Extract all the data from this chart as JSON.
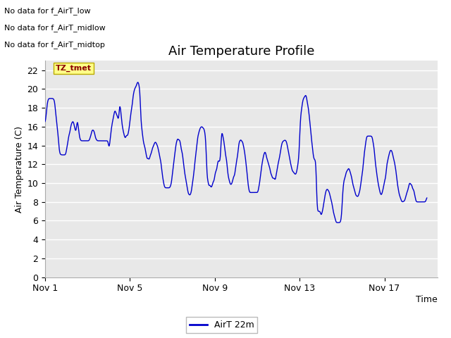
{
  "title": "Air Temperature Profile",
  "xlabel": "Time",
  "ylabel": "Air Temperature (C)",
  "ylim": [
    0,
    23
  ],
  "yticks": [
    0,
    2,
    4,
    6,
    8,
    10,
    12,
    14,
    16,
    18,
    20,
    22
  ],
  "x_tick_labels": [
    "Nov 1",
    "Nov 5",
    "Nov 9",
    "Nov 13",
    "Nov 17"
  ],
  "xtick_positions": [
    0,
    4,
    8,
    12,
    16
  ],
  "xlim": [
    0,
    18.5
  ],
  "legend_label": "AirT 22m",
  "line_color": "#0000cc",
  "fig_bg_color": "#ffffff",
  "plot_bg_color": "#e8e8e8",
  "no_data_texts": [
    "No data for f_AirT_low",
    "No data for f_AirT_midlow",
    "No data for f_AirT_midtop"
  ],
  "tz_label": "TZ_tmet",
  "grid_color": "#ffffff",
  "title_fontsize": 13,
  "axis_fontsize": 9,
  "tick_fontsize": 9,
  "nodata_fontsize": 8
}
